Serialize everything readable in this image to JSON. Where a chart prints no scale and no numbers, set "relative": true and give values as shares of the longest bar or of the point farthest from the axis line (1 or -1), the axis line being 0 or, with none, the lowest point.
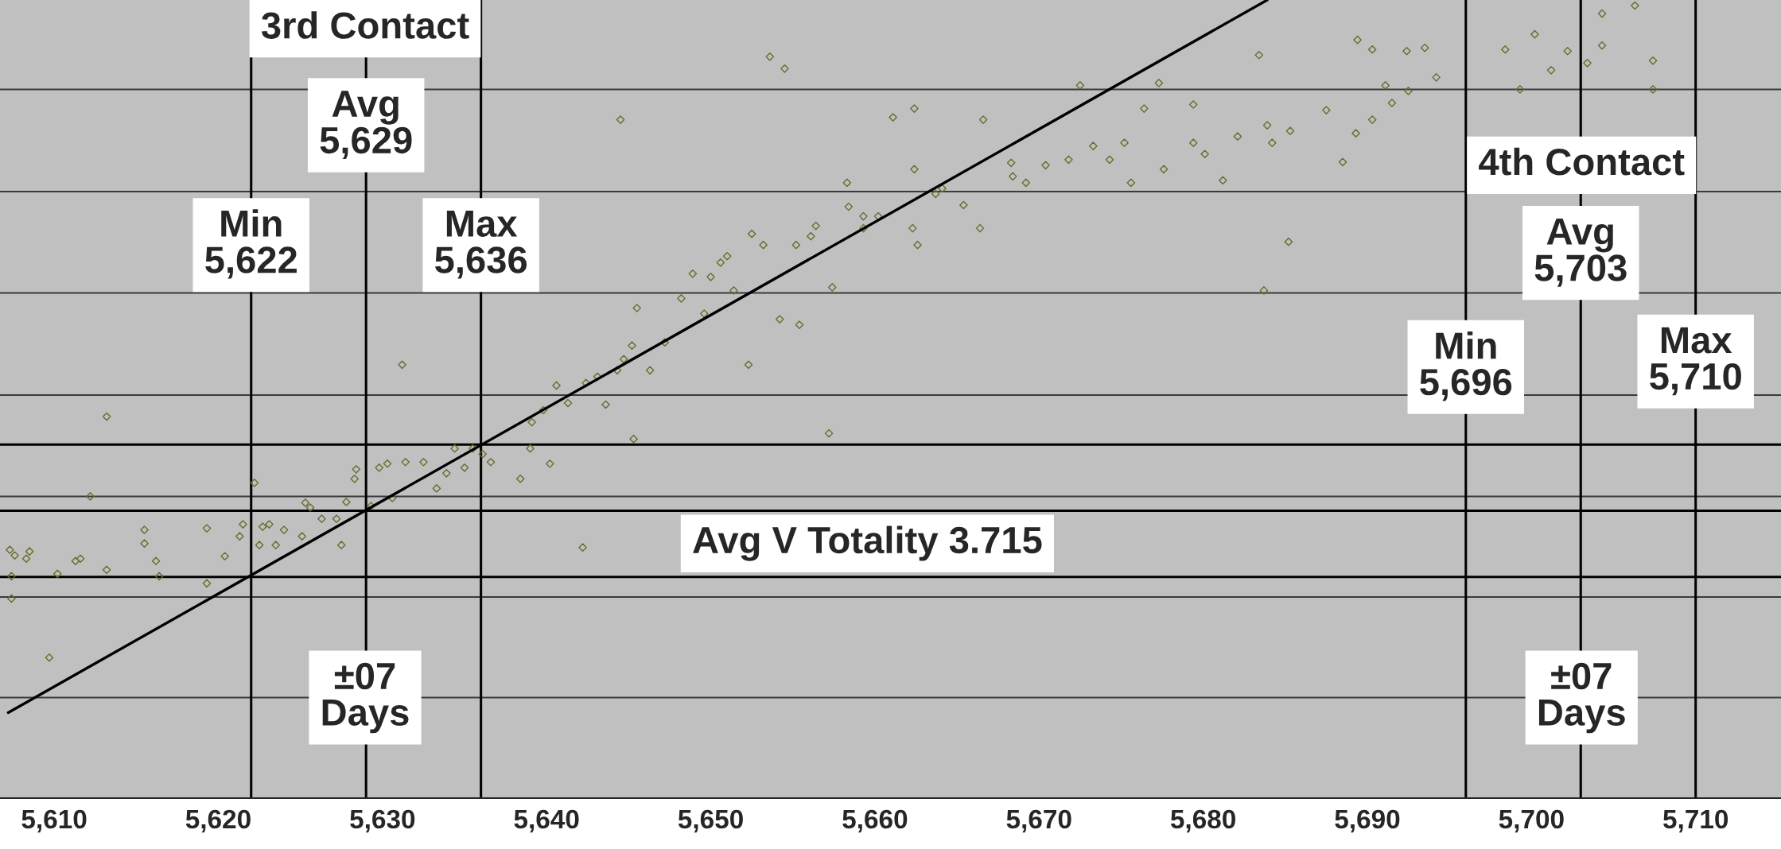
{
  "chart_data": {
    "type": "scatter",
    "relative": true,
    "xlim": [
      5606.7,
      5715.2
    ],
    "xticks": [
      {
        "value": 5610,
        "label": "5,610"
      },
      {
        "value": 5620,
        "label": "5,620"
      },
      {
        "value": 5630,
        "label": "5,630"
      },
      {
        "value": 5640,
        "label": "5,640"
      },
      {
        "value": 5650,
        "label": "5,650"
      },
      {
        "value": 5660,
        "label": "5,660"
      },
      {
        "value": 5670,
        "label": "5,670"
      },
      {
        "value": 5680,
        "label": "5,680"
      },
      {
        "value": 5690,
        "label": "5,690"
      },
      {
        "value": 5700,
        "label": "5,700"
      },
      {
        "value": 5710,
        "label": "5,710"
      }
    ],
    "tick_labels": "x",
    "series": [
      {
        "color": "#6b6b2e",
        "marker": "diamond",
        "x": [
          5607.3,
          5607.6,
          5608.3,
          5608.5,
          5607.4,
          5607.4,
          5609.7,
          5610.2,
          5611.3,
          5611.6,
          5613.2,
          5613.2,
          5612.2,
          5615.5,
          5615.5,
          5616.2,
          5616.4,
          5619.3,
          5619.3,
          5620.4,
          5621.5,
          5621.3,
          5622.2,
          5622.7,
          5623.1,
          5622.5,
          5623.5,
          5624.0,
          5625.3,
          5625.1,
          5625.6,
          5626.3,
          5627.2,
          5627.5,
          5627.8,
          5628.3,
          5628.4,
          5629.3,
          5629.8,
          5630.3,
          5630.6,
          5631.2,
          5631.4,
          5632.5,
          5633.3,
          5633.9,
          5634.4,
          5635.0,
          5635.5,
          5636.1,
          5636.6,
          5638.4,
          5639.0,
          5640.2,
          5639.1,
          5639.8,
          5640.6,
          5641.3,
          5642.2,
          5642.4,
          5643.1,
          5643.6,
          5644.3,
          5644.5,
          5644.7,
          5645.2,
          5645.3,
          5645.5,
          5646.3,
          5647.2,
          5648.2,
          5648.9,
          5649.6,
          5650.0,
          5650.6,
          5651.4,
          5651.0,
          5652.3,
          5652.5,
          5653.2,
          5653.6,
          5654.2,
          5654.5,
          5655.2,
          5655.4,
          5656.1,
          5656.4,
          5657.2,
          5657.4,
          5658.3,
          5658.4,
          5659.3,
          5659.3,
          5660.2,
          5661.1,
          5662.3,
          5662.4,
          5662.4,
          5662.6,
          5663.7,
          5664.1,
          5665.4,
          5666.4,
          5666.6,
          5668.3,
          5668.4,
          5669.2,
          5670.4,
          5671.8,
          5672.5,
          5673.3,
          5674.3,
          5675.2,
          5675.6,
          5676.4,
          5677.3,
          5677.6,
          5679.4,
          5679.4,
          5680.1,
          5681.2,
          5682.1,
          5683.4,
          5683.9,
          5684.2,
          5685.2,
          5685.3,
          5683.7,
          5687.5,
          5688.5,
          5689.3,
          5689.4,
          5690.3,
          5690.3,
          5691.1,
          5691.5,
          5692.4,
          5692.5,
          5693.5,
          5694.2,
          5698.4,
          5699.3,
          5700.2,
          5701.2,
          5702.2,
          5703.4,
          5704.3,
          5704.3,
          5706.3,
          5707.4,
          5707.4
        ],
        "values": [
          0.311,
          0.304,
          0.3,
          0.309,
          0.278,
          0.25,
          0.176,
          0.281,
          0.297,
          0.3,
          0.478,
          0.286,
          0.378,
          0.336,
          0.319,
          0.297,
          0.278,
          0.338,
          0.269,
          0.303,
          0.343,
          0.328,
          0.395,
          0.34,
          0.343,
          0.317,
          0.317,
          0.336,
          0.37,
          0.328,
          0.364,
          0.35,
          0.35,
          0.317,
          0.371,
          0.4,
          0.412,
          0.366,
          0.414,
          0.419,
          0.376,
          0.543,
          0.421,
          0.421,
          0.388,
          0.407,
          0.438,
          0.414,
          0.438,
          0.431,
          0.421,
          0.4,
          0.438,
          0.419,
          0.471,
          0.486,
          0.517,
          0.495,
          0.314,
          0.52,
          0.528,
          0.493,
          0.536,
          0.85,
          0.55,
          0.567,
          0.45,
          0.614,
          0.536,
          0.571,
          0.626,
          0.657,
          0.607,
          0.653,
          0.671,
          0.636,
          0.679,
          0.543,
          0.707,
          0.693,
          0.929,
          0.6,
          0.914,
          0.693,
          0.593,
          0.704,
          0.717,
          0.457,
          0.64,
          0.771,
          0.741,
          0.729,
          0.714,
          0.729,
          0.853,
          0.714,
          0.864,
          0.788,
          0.693,
          0.757,
          0.764,
          0.743,
          0.714,
          0.85,
          0.796,
          0.779,
          0.771,
          0.793,
          0.8,
          0.893,
          0.817,
          0.8,
          0.821,
          0.771,
          0.864,
          0.896,
          0.788,
          0.869,
          0.821,
          0.807,
          0.774,
          0.829,
          0.931,
          0.843,
          0.821,
          0.697,
          0.836,
          0.636,
          0.862,
          0.797,
          0.833,
          0.95,
          0.938,
          0.85,
          0.893,
          0.871,
          0.936,
          0.886,
          0.94,
          0.903,
          0.938,
          0.888,
          0.957,
          0.912,
          0.936,
          0.921,
          0.943,
          0.983,
          0.993,
          0.924,
          0.888
        ]
      },
      {
        "type": "line",
        "color": "#000000",
        "x": [
          5607.2,
          5683.9
        ],
        "values": [
          0.107,
          1
        ]
      }
    ],
    "ref_lines": [
      {
        "axis": "y",
        "value": 0.888,
        "color": "#3a3a3a"
      },
      {
        "axis": "y",
        "value": 0.76,
        "color": "#3a3a3a"
      },
      {
        "axis": "y",
        "value": 0.633,
        "color": "#3a3a3a"
      },
      {
        "axis": "y",
        "value": 0.505,
        "color": "#3a3a3a"
      },
      {
        "axis": "y",
        "value": 0.378,
        "color": "#3a3a3a"
      },
      {
        "axis": "y",
        "value": 0.252,
        "color": "#3a3a3a"
      },
      {
        "axis": "y",
        "value": 0.126,
        "color": "#3a3a3a"
      },
      {
        "axis": "y",
        "value": 0.443,
        "color": "#000000"
      },
      {
        "axis": "y",
        "value": 0.36,
        "color": "#000000"
      },
      {
        "axis": "y",
        "value": 0.277,
        "color": "#000000"
      },
      {
        "axis": "x",
        "value": 5622,
        "label": "Min\n5,622",
        "color": "#000000"
      },
      {
        "axis": "x",
        "value": 5629,
        "label": "Avg\n5,629",
        "color": "#000000"
      },
      {
        "axis": "x",
        "value": 5636,
        "label": "Max\n5,636",
        "color": "#000000"
      },
      {
        "axis": "x",
        "value": 5696,
        "label": "Min\n5,696",
        "color": "#000000"
      },
      {
        "axis": "x",
        "value": 5703,
        "label": "Avg\n5,703",
        "color": "#000000"
      },
      {
        "axis": "x",
        "value": 5710,
        "label": "Max\n5,710",
        "color": "#000000"
      }
    ],
    "annotations": [
      "3rd Contact",
      "4th Contact",
      "Avg V Totality 3.715",
      "±07\nDays",
      "±07\nDays"
    ]
  }
}
